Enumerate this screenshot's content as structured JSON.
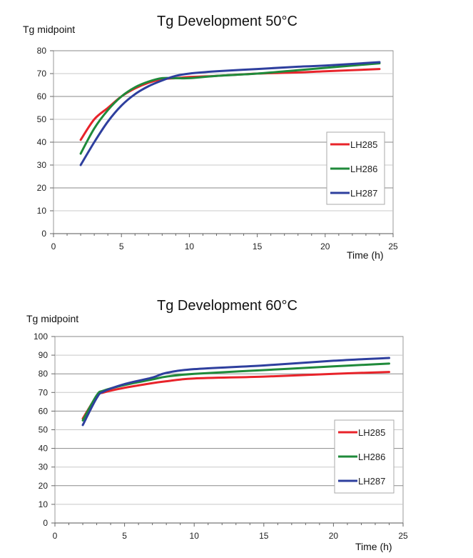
{
  "chart_data": [
    {
      "type": "line",
      "title": "Tg Development 50°C",
      "ylabel": "Tg midpoint",
      "xlabel": "Time (h)",
      "xlim": [
        0,
        25
      ],
      "ylim": [
        0,
        80
      ],
      "xticks": [
        0,
        5,
        10,
        15,
        20,
        25
      ],
      "yticks": [
        0,
        10,
        20,
        30,
        40,
        50,
        60,
        70,
        80
      ],
      "grid": true,
      "legend": "right",
      "series": [
        {
          "name": "LH285",
          "color": "#e8232a",
          "x": [
            2,
            3,
            4,
            5,
            6,
            7,
            8,
            9,
            10,
            12,
            15,
            18,
            20,
            24
          ],
          "y": [
            41,
            50,
            55,
            60,
            63.5,
            66,
            67.5,
            68,
            68.5,
            69,
            70,
            70.5,
            71,
            72
          ]
        },
        {
          "name": "LH286",
          "color": "#1f8a3a",
          "x": [
            2,
            3,
            4,
            5,
            6,
            7,
            8,
            9,
            10,
            12,
            15,
            18,
            20,
            24
          ],
          "y": [
            35,
            46,
            54,
            60,
            64,
            66.5,
            68,
            68,
            68,
            69,
            70,
            71.5,
            72.5,
            74.5
          ]
        },
        {
          "name": "LH287",
          "color": "#2e3f9e",
          "x": [
            2,
            3,
            4,
            5,
            6,
            7,
            8,
            9,
            10,
            12,
            15,
            18,
            20,
            24
          ],
          "y": [
            30,
            40,
            49,
            56,
            61,
            64.5,
            67,
            69,
            70,
            71,
            72,
            73,
            73.5,
            75
          ]
        }
      ]
    },
    {
      "type": "line",
      "title": "Tg Development 60°C",
      "ylabel": "Tg midpoint",
      "xlabel": "Time (h)",
      "xlim": [
        0,
        25
      ],
      "ylim": [
        0,
        100
      ],
      "xticks": [
        0,
        5,
        10,
        15,
        20,
        25
      ],
      "yticks": [
        0,
        10,
        20,
        30,
        40,
        50,
        60,
        70,
        80,
        90,
        100
      ],
      "grid": true,
      "legend": "right",
      "series": [
        {
          "name": "LH285",
          "color": "#e8232a",
          "x": [
            2,
            3,
            3.5,
            5,
            7,
            8,
            10,
            15,
            20,
            24
          ],
          "y": [
            56,
            68,
            70,
            72.5,
            75,
            76,
            77.5,
            78.5,
            80,
            81
          ]
        },
        {
          "name": "LH286",
          "color": "#1f8a3a",
          "x": [
            2,
            3,
            3.5,
            5,
            7,
            8,
            10,
            15,
            20,
            24
          ],
          "y": [
            55,
            68.5,
            71,
            74,
            77,
            78.5,
            80,
            82,
            84,
            85.5
          ]
        },
        {
          "name": "LH287",
          "color": "#2e3f9e",
          "x": [
            2,
            3,
            3.5,
            5,
            7,
            8,
            10,
            15,
            20,
            24
          ],
          "y": [
            52.5,
            67,
            70.5,
            74.5,
            78,
            80.5,
            82.5,
            84.5,
            87,
            88.5
          ]
        }
      ]
    }
  ]
}
